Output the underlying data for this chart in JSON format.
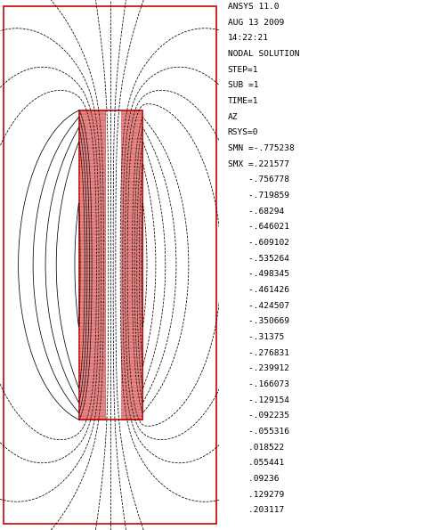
{
  "header_lines": [
    "ANSYS 11.0",
    "AUG 13 2009",
    "14:22:21",
    "NODAL SOLUTION",
    "STEP=1",
    "SUB =1",
    "TIME=1",
    "AZ",
    "RSYS=0",
    "SMN =-.775238",
    "SMX =.221577"
  ],
  "legend_values": [
    "    -.756778",
    "    -.719859",
    "    -.68294",
    "    -.646021",
    "    -.609102",
    "    -.535264",
    "    -.498345",
    "    -.461426",
    "    -.424507",
    "    -.350669",
    "    -.31375",
    "    -.276831",
    "    -.239912",
    "    -.166073",
    "    -.129154",
    "    -.092235",
    "    -.055316",
    "    .018522",
    "    .055441",
    "    .09236",
    "    .129279",
    "    .203117"
  ],
  "background_color": "#ffffff",
  "contour_color": "#000000",
  "rect_color": "#cc0000",
  "ansys_min": -0.775238,
  "ansys_max": 0.221577,
  "contour_levels": [
    -0.756778,
    -0.719859,
    -0.68294,
    -0.646021,
    -0.609102,
    -0.535264,
    -0.498345,
    -0.461426,
    -0.424507,
    -0.350669,
    -0.31375,
    -0.276831,
    -0.239912,
    -0.166073,
    -0.129154,
    -0.092235,
    -0.055316,
    0.018522,
    0.055441,
    0.09236,
    0.129279,
    0.203117
  ],
  "fig_width": 4.74,
  "fig_height": 5.95,
  "dpi": 100
}
